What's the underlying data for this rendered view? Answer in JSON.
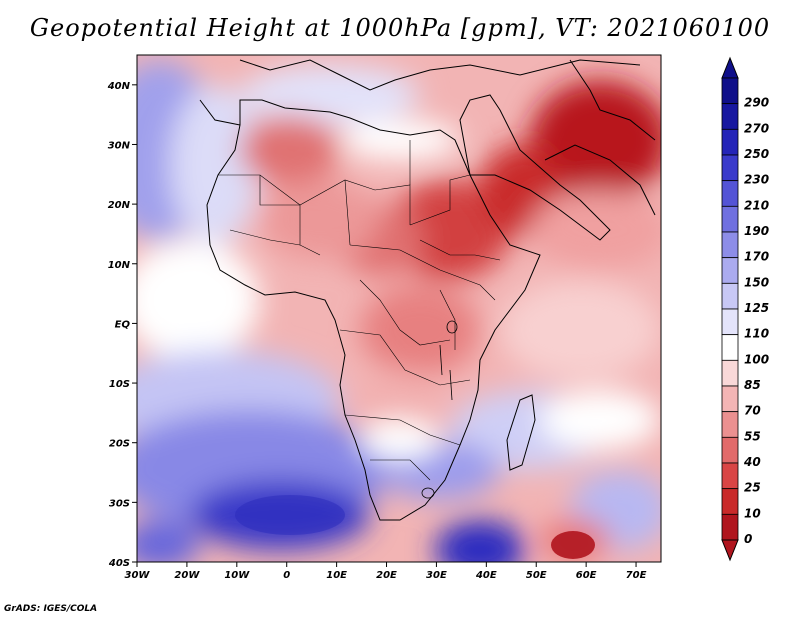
{
  "title": "Geopotential Height at 1000hPa [gpm], VT: 2021060100",
  "credit": "GrADS: IGES/COLA",
  "map": {
    "lon_range": [
      -30,
      75
    ],
    "lat_range": [
      -40,
      45
    ],
    "lon_ticks": [
      "30W",
      "20W",
      "10W",
      "0",
      "10E",
      "20E",
      "30E",
      "40E",
      "50E",
      "60E",
      "70E"
    ],
    "lon_values": [
      -30,
      -20,
      -10,
      0,
      10,
      20,
      30,
      40,
      50,
      60,
      70
    ],
    "lat_ticks": [
      "40N",
      "30N",
      "20N",
      "10N",
      "EQ",
      "10S",
      "20S",
      "30S",
      "40S"
    ],
    "lat_values": [
      40,
      30,
      20,
      10,
      0,
      -10,
      -20,
      -30,
      -40
    ]
  },
  "colorbar": {
    "labels": [
      "0",
      "10",
      "25",
      "40",
      "55",
      "70",
      "85",
      "100",
      "110",
      "125",
      "150",
      "170",
      "190",
      "210",
      "230",
      "250",
      "270",
      "290"
    ],
    "colors": [
      "#b0151e",
      "#c92a2a",
      "#d94545",
      "#e26a6a",
      "#eb9090",
      "#f3b5b5",
      "#f9d8d8",
      "#ffffff",
      "#e4e4fb",
      "#c8c8f5",
      "#ababef",
      "#8d8de8",
      "#7070e0",
      "#5454d6",
      "#3a3acb",
      "#2424b8",
      "#1818a0",
      "#10108a"
    ]
  }
}
